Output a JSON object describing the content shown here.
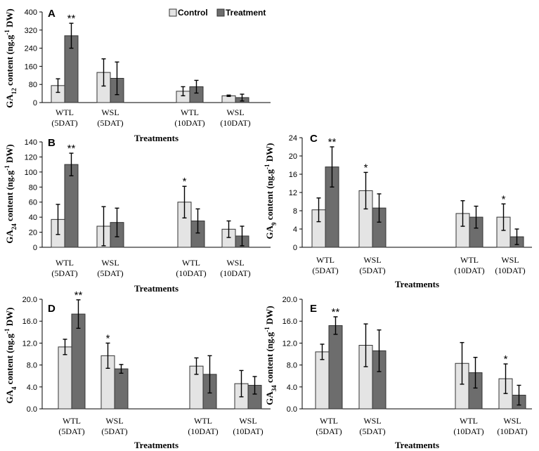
{
  "legend": {
    "control": "Control",
    "treatment": "Treatment"
  },
  "colors": {
    "control": "#e4e4e4",
    "treatment": "#6d6d6d",
    "stroke": "#333333"
  },
  "chart_data": [
    {
      "type": "bar",
      "panel": "A",
      "categories": [
        "WTL\n(5DAT)",
        "WSL\n(5DAT)",
        "WTL\n(10DAT)",
        "WSL\n(10DAT)"
      ],
      "series": [
        {
          "name": "Control",
          "values": [
            75,
            133,
            50,
            30
          ],
          "errors": [
            30,
            60,
            20,
            3
          ]
        },
        {
          "name": "Treatment",
          "values": [
            295,
            107,
            70,
            22
          ],
          "errors": [
            55,
            72,
            28,
            15
          ]
        }
      ],
      "significance": [
        {
          "category": 0,
          "series": 1,
          "label": "**"
        }
      ],
      "ylim": [
        0,
        400
      ],
      "yticks": [
        "0",
        "80",
        "160",
        "240",
        "320",
        "400"
      ],
      "xlabel": "Treatments",
      "ylabel_main": "GA",
      "ylabel_sub": "12",
      "ylabel_rest": " content (ng.g",
      "ylabel_sup": "-1",
      "ylabel_end": " DW)"
    },
    {
      "type": "bar",
      "panel": "B",
      "categories": [
        "WTL\n(5DAT)",
        "WSL\n(5DAT)",
        "WTL\n(10DAT)",
        "WSL\n(10DAT)"
      ],
      "series": [
        {
          "name": "Control",
          "values": [
            37,
            28,
            60,
            24
          ],
          "errors": [
            20,
            26,
            21,
            11
          ]
        },
        {
          "name": "Treatment",
          "values": [
            110,
            33,
            35,
            15
          ],
          "errors": [
            15,
            19,
            16,
            13
          ]
        }
      ],
      "significance": [
        {
          "category": 0,
          "series": 1,
          "label": "**"
        },
        {
          "category": 2,
          "series": 0,
          "label": "*"
        }
      ],
      "ylim": [
        0,
        140
      ],
      "yticks": [
        "0",
        "20",
        "40",
        "60",
        "80",
        "100",
        "120",
        "140"
      ],
      "xlabel": "Treatments",
      "ylabel_main": "GA",
      "ylabel_sub": "24",
      "ylabel_rest": " content (ng.g",
      "ylabel_sup": "-1",
      "ylabel_end": " DW)"
    },
    {
      "type": "bar",
      "panel": "C",
      "categories": [
        "WTL\n(5DAT)",
        "WSL\n(5DAT)",
        "WTL\n(10DAT)",
        "WSL\n(10DAT)"
      ],
      "series": [
        {
          "name": "Control",
          "values": [
            8.2,
            12.4,
            7.4,
            6.6
          ],
          "errors": [
            2.6,
            4.0,
            2.8,
            2.9
          ]
        },
        {
          "name": "Treatment",
          "values": [
            17.6,
            8.6,
            6.6,
            2.3
          ],
          "errors": [
            4.4,
            3.1,
            2.4,
            1.7
          ]
        }
      ],
      "significance": [
        {
          "category": 0,
          "series": 1,
          "label": "**"
        },
        {
          "category": 1,
          "series": 0,
          "label": "*"
        },
        {
          "category": 3,
          "series": 0,
          "label": "*"
        }
      ],
      "ylim": [
        0,
        24
      ],
      "yticks": [
        "0",
        "4",
        "8",
        "12",
        "16",
        "20",
        "24"
      ],
      "xlabel": "Treatments",
      "ylabel_main": "GA",
      "ylabel_sub": "9",
      "ylabel_rest": " content (ng.g",
      "ylabel_sup": "-1",
      "ylabel_end": " DW)"
    },
    {
      "type": "bar",
      "panel": "D",
      "categories": [
        "WTL\n(5DAT)",
        "WSL\n(5DAT)",
        "WTL\n(10DAT)",
        "WSL\n(10DAT)"
      ],
      "series": [
        {
          "name": "Control",
          "values": [
            11.3,
            9.7,
            7.8,
            4.6
          ],
          "errors": [
            1.4,
            2.3,
            1.5,
            2.4
          ]
        },
        {
          "name": "Treatment",
          "values": [
            17.3,
            7.3,
            6.3,
            4.3
          ],
          "errors": [
            2.6,
            0.8,
            3.4,
            1.6
          ]
        }
      ],
      "significance": [
        {
          "category": 0,
          "series": 1,
          "label": "**"
        },
        {
          "category": 1,
          "series": 0,
          "label": "*"
        }
      ],
      "ylim": [
        0,
        20
      ],
      "yticks": [
        "0.0",
        "4.0",
        "8.0",
        "12.0",
        "16.0",
        "20.0"
      ],
      "xlabel": "Treatments",
      "ylabel_main": "GA",
      "ylabel_sub": "4",
      "ylabel_rest": " content (ng.g",
      "ylabel_sup": "-1",
      "ylabel_end": " DW)"
    },
    {
      "type": "bar",
      "panel": "E",
      "categories": [
        "WTL\n(5DAT)",
        "WSL\n(5DAT)",
        "WTL\n(10DAT)",
        "WSL\n(10DAT)"
      ],
      "series": [
        {
          "name": "Control",
          "values": [
            10.4,
            11.6,
            8.3,
            5.5
          ],
          "errors": [
            1.4,
            3.9,
            3.8,
            2.7
          ]
        },
        {
          "name": "Treatment",
          "values": [
            15.2,
            10.6,
            6.6,
            2.5
          ],
          "errors": [
            1.6,
            3.8,
            2.8,
            1.8
          ]
        }
      ],
      "significance": [
        {
          "category": 0,
          "series": 1,
          "label": "**"
        },
        {
          "category": 3,
          "series": 0,
          "label": "*"
        }
      ],
      "ylim": [
        0,
        20
      ],
      "yticks": [
        "0.0",
        "4.0",
        "8.0",
        "12.0",
        "16.0",
        "20.0"
      ],
      "xlabel": "Treatments",
      "ylabel_main": "GA",
      "ylabel_sub": "34",
      "ylabel_rest": " content (ng.g",
      "ylabel_sup": "-1",
      "ylabel_end": " DW)"
    }
  ]
}
